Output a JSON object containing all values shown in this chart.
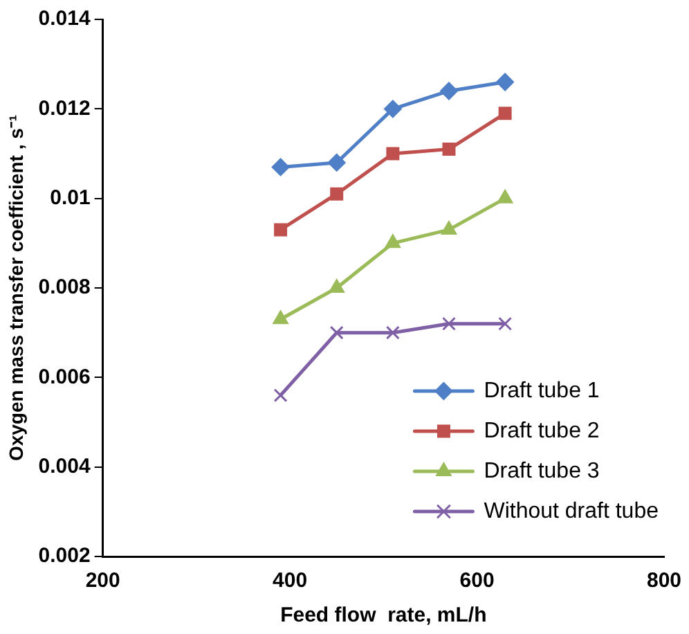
{
  "chart_data": {
    "type": "line",
    "xlabel": "Feed flow  rate, mL/h",
    "ylabel": "Oxygen mass transfer coefficient , s⁻¹",
    "x": [
      390,
      450,
      510,
      570,
      630
    ],
    "series": [
      {
        "name": "Draft tube 1",
        "color": "#4f7fc6",
        "marker": "diamond",
        "values": [
          0.0107,
          0.0108,
          0.012,
          0.0124,
          0.0126
        ]
      },
      {
        "name": "Draft tube 2",
        "color": "#c0504d",
        "marker": "square",
        "values": [
          0.0093,
          0.0101,
          0.011,
          0.0111,
          0.0119
        ]
      },
      {
        "name": "Draft tube 3",
        "color": "#9bbb59",
        "marker": "triangle",
        "values": [
          0.0073,
          0.008,
          0.009,
          0.0093,
          0.01
        ]
      },
      {
        "name": "Without draft tube",
        "color": "#7f5fa6",
        "marker": "cross",
        "values": [
          0.0056,
          0.007,
          0.007,
          0.0072,
          0.0072
        ]
      }
    ],
    "xlim": [
      200,
      800
    ],
    "xticks": [
      200,
      400,
      600,
      800
    ],
    "ylim": [
      0.002,
      0.014
    ],
    "yticks": [
      0.002,
      0.004,
      0.006,
      0.008,
      0.01,
      0.012,
      0.014
    ],
    "grid": false,
    "legend": "bottom right"
  }
}
